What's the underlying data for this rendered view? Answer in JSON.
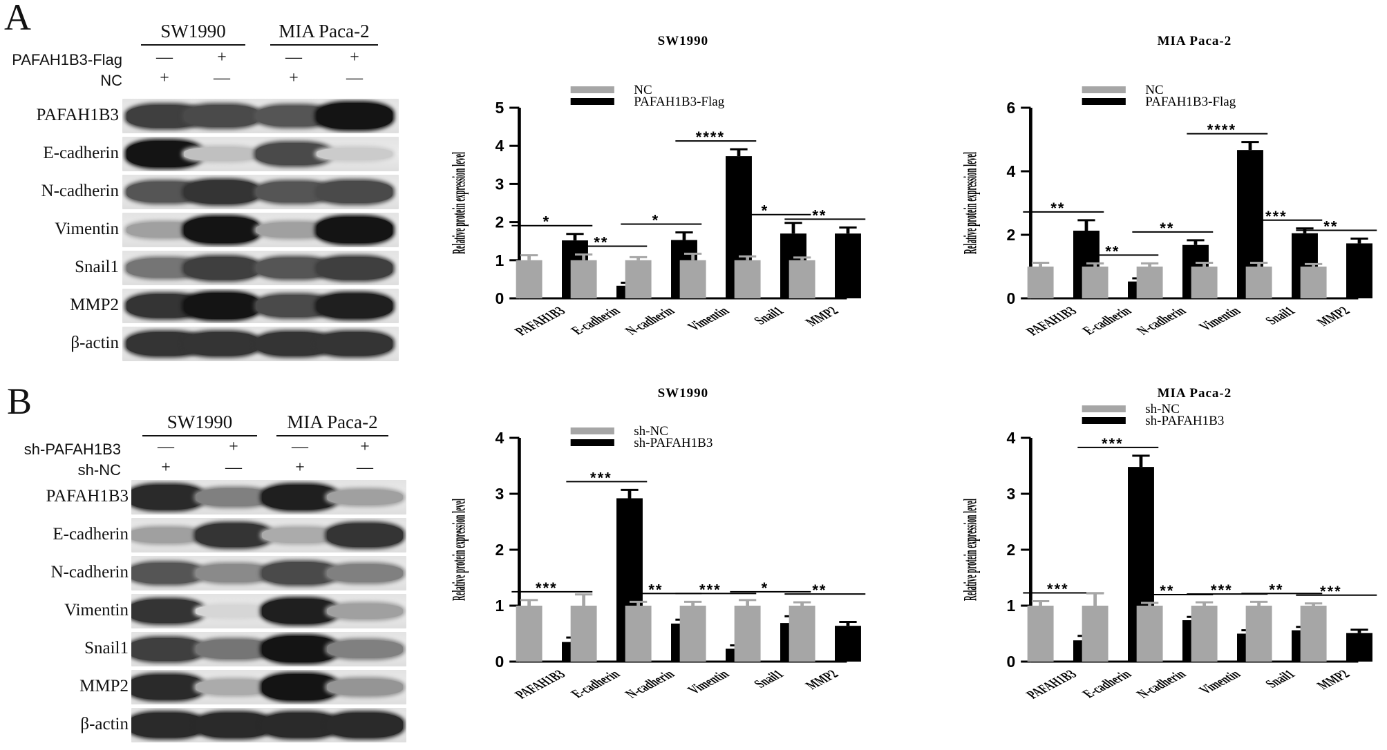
{
  "panels": [
    {
      "letter": "A",
      "blot": {
        "groups": [
          "SW1990",
          "MIA Paca-2"
        ],
        "conditions": [
          {
            "label": "PAFAH1B3-Flag",
            "marks": [
              "—",
              "+",
              "—",
              "+"
            ]
          },
          {
            "label": "NC",
            "marks": [
              "+",
              "—",
              "+",
              "—"
            ]
          }
        ],
        "rows": [
          {
            "label": "PAFAH1B3",
            "intensity": [
              0.8,
              0.75,
              0.7,
              1.0
            ]
          },
          {
            "label": "E-cadherin",
            "intensity": [
              1.0,
              0.2,
              0.75,
              0.15
            ]
          },
          {
            "label": "N-cadherin",
            "intensity": [
              0.7,
              0.85,
              0.7,
              0.75
            ]
          },
          {
            "label": "Vimentin",
            "intensity": [
              0.35,
              1.0,
              0.35,
              1.0
            ]
          },
          {
            "label": "Snail1",
            "intensity": [
              0.55,
              0.8,
              0.7,
              0.8
            ]
          },
          {
            "label": "MMP2",
            "intensity": [
              0.85,
              1.0,
              0.75,
              0.95
            ]
          },
          {
            "label": "β-actin",
            "intensity": [
              0.85,
              0.85,
              0.85,
              0.85
            ]
          }
        ]
      }
    },
    {
      "letter": "B",
      "blot": {
        "groups": [
          "SW1990",
          "MIA Paca-2"
        ],
        "conditions": [
          {
            "label": "sh-PAFAH1B3",
            "marks": [
              "—",
              "+",
              "—",
              "+"
            ]
          },
          {
            "label": "sh-NC",
            "marks": [
              "+",
              "—",
              "+",
              "—"
            ]
          }
        ],
        "rows": [
          {
            "label": "PAFAH1B3",
            "intensity": [
              0.9,
              0.5,
              0.95,
              0.35
            ]
          },
          {
            "label": "E-cadherin",
            "intensity": [
              0.35,
              0.85,
              0.3,
              0.85
            ]
          },
          {
            "label": "N-cadherin",
            "intensity": [
              0.7,
              0.45,
              0.75,
              0.5
            ]
          },
          {
            "label": "Vimentin",
            "intensity": [
              0.85,
              0.1,
              0.95,
              0.35
            ]
          },
          {
            "label": "Snail1",
            "intensity": [
              0.8,
              0.55,
              1.0,
              0.5
            ]
          },
          {
            "label": "MMP2",
            "intensity": [
              0.9,
              0.3,
              1.0,
              0.4
            ]
          },
          {
            "label": "β-actin",
            "intensity": [
              0.9,
              0.9,
              0.9,
              0.9
            ]
          }
        ]
      }
    }
  ],
  "colors": {
    "control": "#a6a6a6",
    "treatment": "#000000"
  },
  "chart_data": [
    {
      "type": "bar",
      "title": "SW1990",
      "ylabel": "Relative protein expression level",
      "xlabel": "",
      "ylim": [
        0,
        5
      ],
      "yticks": [
        0,
        1,
        2,
        3,
        4,
        5
      ],
      "categories": [
        "PAFAH1B3",
        "E-cadherin",
        "N-cadherin",
        "Vimentin",
        "Snail1",
        "MMP2"
      ],
      "series": [
        {
          "name": "NC",
          "values": [
            1.0,
            1.0,
            1.0,
            1.0,
            1.0,
            1.0
          ],
          "errors": [
            0.13,
            0.15,
            0.08,
            0.17,
            0.1,
            0.07
          ]
        },
        {
          "name": "PAFAH1B3-Flag",
          "values": [
            1.52,
            0.33,
            1.53,
            3.73,
            1.7,
            1.7
          ],
          "errors": [
            0.17,
            0.08,
            0.2,
            0.18,
            0.28,
            0.16
          ]
        }
      ],
      "significance": [
        "*",
        "**",
        "*",
        "****",
        "*",
        "**"
      ],
      "legend": "top-left"
    },
    {
      "type": "bar",
      "title": "MIA Paca-2",
      "ylabel": "Relative protein expression level",
      "xlabel": "",
      "ylim": [
        0,
        6
      ],
      "yticks": [
        0,
        2,
        4,
        6
      ],
      "categories": [
        "PAFAH1B3",
        "E-cadherin",
        "N-cadherin",
        "Vimentin",
        "Snail1",
        "MMP2"
      ],
      "series": [
        {
          "name": "NC",
          "values": [
            1.0,
            1.0,
            1.0,
            1.0,
            1.0,
            1.0
          ],
          "errors": [
            0.12,
            0.1,
            0.1,
            0.12,
            0.12,
            0.08
          ]
        },
        {
          "name": "PAFAH1B3-Flag",
          "values": [
            2.13,
            0.53,
            1.68,
            4.67,
            2.05,
            1.73
          ],
          "errors": [
            0.33,
            0.1,
            0.15,
            0.25,
            0.15,
            0.15
          ]
        }
      ],
      "significance": [
        "**",
        "**",
        "**",
        "****",
        "***",
        "**"
      ],
      "legend": "top-left"
    },
    {
      "type": "bar",
      "title": "SW1990",
      "ylabel": "Relative protein expression level",
      "xlabel": "",
      "ylim": [
        0,
        4
      ],
      "yticks": [
        0,
        1,
        2,
        3,
        4
      ],
      "categories": [
        "PAFAH1B3",
        "E-cadherin",
        "N-cadherin",
        "Vimentin",
        "Snail1",
        "MMP2"
      ],
      "series": [
        {
          "name": "sh-NC",
          "values": [
            1.0,
            1.0,
            1.0,
            1.0,
            1.0,
            1.0
          ],
          "errors": [
            0.1,
            0.2,
            0.07,
            0.07,
            0.1,
            0.06
          ]
        },
        {
          "name": "sh-PAFAH1B3",
          "values": [
            0.35,
            2.92,
            0.68,
            0.23,
            0.69,
            0.64
          ],
          "errors": [
            0.08,
            0.15,
            0.07,
            0.06,
            0.12,
            0.07
          ]
        }
      ],
      "significance": [
        "***",
        "***",
        "**",
        "***",
        "*",
        "**"
      ],
      "legend": "top-left"
    },
    {
      "type": "bar",
      "title": "MIA Paca-2",
      "ylabel": "Relative protein expression level",
      "xlabel": "",
      "ylim": [
        0,
        4
      ],
      "yticks": [
        0,
        1,
        2,
        3,
        4
      ],
      "categories": [
        "PAFAH1B3",
        "E-cadherin",
        "N-cadherin",
        "Vimentin",
        "Snail1",
        "MMP2"
      ],
      "series": [
        {
          "name": "sh-NC",
          "values": [
            1.0,
            1.0,
            1.0,
            1.0,
            1.0,
            1.0
          ],
          "errors": [
            0.08,
            0.22,
            0.05,
            0.06,
            0.07,
            0.04
          ]
        },
        {
          "name": "sh-PAFAH1B3",
          "values": [
            0.38,
            3.48,
            0.74,
            0.5,
            0.56,
            0.51
          ],
          "errors": [
            0.08,
            0.2,
            0.06,
            0.06,
            0.06,
            0.06
          ]
        }
      ],
      "significance": [
        "***",
        "***",
        "**",
        "***",
        "**",
        "***"
      ],
      "legend": "top-left"
    }
  ]
}
